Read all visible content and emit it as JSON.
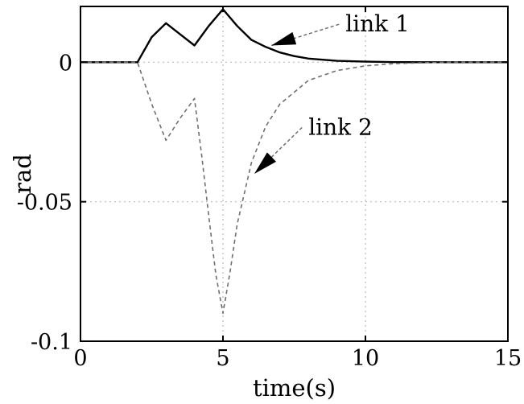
{
  "chart_data": {
    "type": "line",
    "title": "",
    "xlabel": "time(s)",
    "ylabel": "rad",
    "xlim": [
      0,
      15
    ],
    "ylim": [
      -0.1,
      0.02
    ],
    "grid": true,
    "legend": "none",
    "x_ticks": [
      {
        "value": 0,
        "label": "0"
      },
      {
        "value": 5,
        "label": "5"
      },
      {
        "value": 10,
        "label": "10"
      },
      {
        "value": 15,
        "label": "15"
      }
    ],
    "y_ticks": [
      {
        "value": 0,
        "label": "0"
      },
      {
        "value": -0.05,
        "label": "-0.05"
      },
      {
        "value": -0.1,
        "label": "-0.1"
      }
    ],
    "series": [
      {
        "name": "link 1",
        "color": "#000000",
        "style": "solid",
        "x": [
          0,
          2,
          2.5,
          3,
          3.5,
          4,
          4.5,
          5,
          5.5,
          6,
          6.5,
          7,
          7.5,
          8,
          9,
          10,
          11,
          12,
          15
        ],
        "y": [
          0,
          0,
          0.009,
          0.014,
          0.01,
          0.006,
          0.013,
          0.019,
          0.013,
          0.008,
          0.0055,
          0.0035,
          0.0022,
          0.0013,
          0.0005,
          0.0002,
          5e-05,
          0,
          0
        ]
      },
      {
        "name": "link 2",
        "color": "#707070",
        "style": "dashed",
        "x": [
          0,
          2,
          2.5,
          3,
          3.5,
          4,
          4.25,
          4.5,
          4.75,
          5,
          5.25,
          5.5,
          6,
          6.5,
          7,
          8,
          9,
          10,
          11,
          12,
          13,
          15
        ],
        "y": [
          0,
          0,
          -0.015,
          -0.028,
          -0.02,
          -0.013,
          -0.033,
          -0.055,
          -0.076,
          -0.09,
          -0.075,
          -0.058,
          -0.036,
          -0.023,
          -0.015,
          -0.0065,
          -0.003,
          -0.0013,
          -0.0005,
          -0.0002,
          0,
          0
        ]
      }
    ],
    "annotations": [
      {
        "text": "link 1",
        "series": "link 1",
        "x": 6.7,
        "y": 0.006,
        "label_x": 9.3,
        "label_y": 0.011
      },
      {
        "text": "link 2",
        "series": "link 2",
        "x": 6.1,
        "y": -0.04,
        "label_x": 8.0,
        "label_y": -0.026
      }
    ]
  }
}
